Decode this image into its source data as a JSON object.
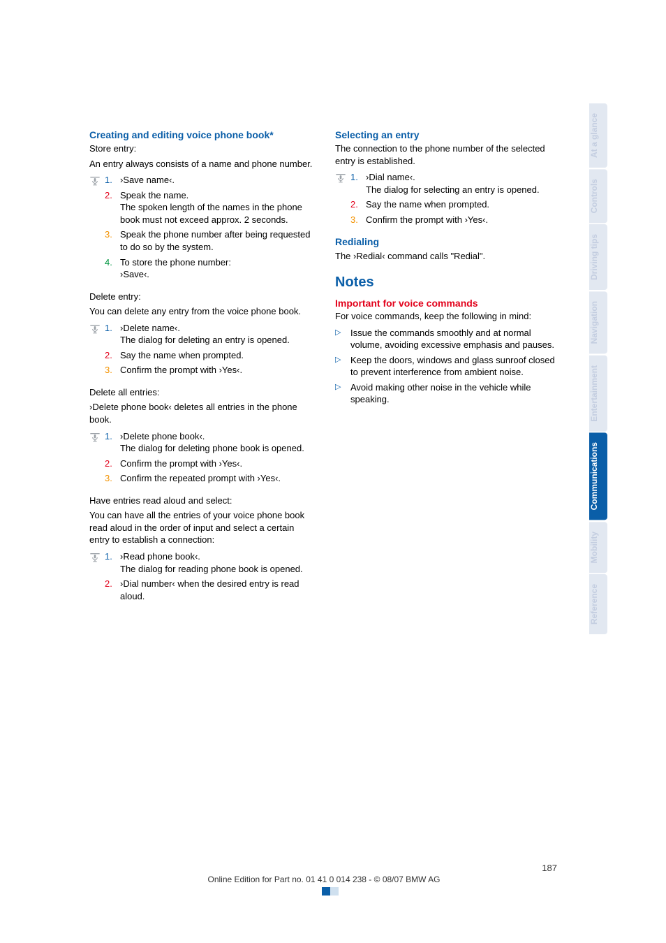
{
  "left": {
    "h_create": "Creating and editing voice phone book*",
    "store_entry_lbl": "Store entry:",
    "store_entry_body": "An entry always consists of a name and phone number.",
    "ol_store": [
      {
        "c": "c1",
        "n": "1.",
        "t": "›Save name‹."
      },
      {
        "c": "c2",
        "n": "2.",
        "t": "Speak the name.\nThe spoken length of the names in the phone book must not exceed approx. 2 seconds."
      },
      {
        "c": "c3",
        "n": "3.",
        "t": "Speak the phone number after being requested to do so by the system."
      },
      {
        "c": "c4",
        "n": "4.",
        "t": "To store the phone number:\n›Save‹."
      }
    ],
    "delete_entry_lbl": "Delete entry:",
    "delete_entry_body": "You can delete any entry from the voice phone book.",
    "ol_delete": [
      {
        "c": "c1",
        "n": "1.",
        "t": "›Delete name‹.\nThe dialog for deleting an entry is opened."
      },
      {
        "c": "c2",
        "n": "2.",
        "t": "Say the name when prompted."
      },
      {
        "c": "c3",
        "n": "3.",
        "t": "Confirm the prompt with ›Yes‹."
      }
    ],
    "delete_all_lbl": "Delete all entries:",
    "delete_all_body": "›Delete phone book‹ deletes all entries in the phone book.",
    "ol_delete_all": [
      {
        "c": "c1",
        "n": "1.",
        "t": "›Delete phone book‹.\nThe dialog for deleting phone book is opened."
      },
      {
        "c": "c2",
        "n": "2.",
        "t": "Confirm the prompt with ›Yes‹."
      },
      {
        "c": "c3",
        "n": "3.",
        "t": "Confirm the repeated prompt with ›Yes‹."
      }
    ],
    "read_lbl": "Have entries read aloud and select:",
    "read_body": "You can have all the entries of your voice phone book read aloud in the order of input and select a certain entry to establish a connection:",
    "ol_read": [
      {
        "c": "c1",
        "n": "1.",
        "t": "›Read phone book‹.\nThe dialog for reading phone book is opened."
      },
      {
        "c": "c2",
        "n": "2.",
        "t": "›Dial number‹ when the desired entry is read aloud."
      }
    ]
  },
  "right": {
    "h_select": "Selecting an entry",
    "select_body": "The connection to the phone number of the selected entry is established.",
    "ol_select": [
      {
        "c": "c1",
        "n": "1.",
        "t": "›Dial name‹.\nThe dialog for selecting an entry is opened."
      },
      {
        "c": "c2",
        "n": "2.",
        "t": "Say the name when prompted."
      },
      {
        "c": "c3",
        "n": "3.",
        "t": "Confirm the prompt with ›Yes‹."
      }
    ],
    "h_redial": "Redialing",
    "redial_body": "The ›Redial‹ command calls \"Redial\".",
    "h_notes": "Notes",
    "h_important": "Important for voice commands",
    "important_body": "For voice commands, keep the following in mind:",
    "ul_notes": [
      "Issue the commands smoothly and at normal volume, avoiding excessive emphasis and pauses.",
      "Keep the doors, windows and glass sunroof closed to prevent interference from ambient noise.",
      "Avoid making other noise in the vehicle while speaking."
    ]
  },
  "tabs": [
    {
      "label": "At a glance",
      "active": false
    },
    {
      "label": "Controls",
      "active": false
    },
    {
      "label": "Driving tips",
      "active": false
    },
    {
      "label": "Navigation",
      "active": false
    },
    {
      "label": "Entertainment",
      "active": false
    },
    {
      "label": "Communications",
      "active": true
    },
    {
      "label": "Mobility",
      "active": false
    },
    {
      "label": "Reference",
      "active": false
    }
  ],
  "footer": {
    "page": "187",
    "line": "Online Edition for Part no. 01 41 0 014 238 - © 08/07 BMW AG"
  },
  "icons": {
    "mic_color": "#9aa0a6"
  }
}
